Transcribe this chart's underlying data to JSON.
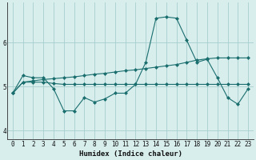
{
  "xlabel": "Humidex (Indice chaleur)",
  "background_color": "#d8eeed",
  "grid_color": "#a8cece",
  "line_color": "#1a6e6e",
  "xlim": [
    -0.5,
    23.5
  ],
  "ylim": [
    3.8,
    6.9
  ],
  "yticks": [
    4,
    5,
    6
  ],
  "xticks": [
    0,
    1,
    2,
    3,
    4,
    5,
    6,
    7,
    8,
    9,
    10,
    11,
    12,
    13,
    14,
    15,
    16,
    17,
    18,
    19,
    20,
    21,
    22,
    23
  ],
  "line1_x": [
    0,
    1,
    2,
    3,
    4,
    5,
    6,
    7,
    8,
    9,
    10,
    11,
    12,
    13,
    14,
    15,
    16,
    17,
    18,
    19,
    20,
    21,
    22,
    23
  ],
  "line1_y": [
    4.85,
    5.25,
    5.2,
    5.2,
    4.95,
    4.45,
    4.45,
    4.75,
    4.65,
    4.72,
    4.85,
    4.85,
    5.05,
    5.55,
    6.55,
    6.58,
    6.55,
    6.05,
    5.55,
    5.62,
    5.2,
    4.75,
    4.6,
    4.95
  ],
  "line2_x": [
    0,
    1,
    2,
    3,
    4,
    5,
    6,
    7,
    8,
    9,
    10,
    11,
    12,
    13,
    14,
    15,
    16,
    17,
    18,
    19,
    20,
    21,
    22,
    23
  ],
  "line2_y": [
    4.85,
    5.1,
    5.13,
    5.16,
    5.18,
    5.2,
    5.22,
    5.25,
    5.28,
    5.3,
    5.33,
    5.36,
    5.38,
    5.41,
    5.44,
    5.47,
    5.5,
    5.55,
    5.6,
    5.63,
    5.65,
    5.65,
    5.65,
    5.65
  ],
  "line3_x": [
    0,
    1,
    2,
    3,
    4,
    5,
    6,
    7,
    8,
    9,
    10,
    11,
    12,
    13,
    14,
    15,
    16,
    17,
    18,
    19,
    20,
    21,
    22,
    23
  ],
  "line3_y": [
    4.85,
    5.1,
    5.1,
    5.1,
    5.07,
    5.05,
    5.05,
    5.05,
    5.05,
    5.05,
    5.05,
    5.05,
    5.05,
    5.05,
    5.05,
    5.05,
    5.05,
    5.05,
    5.05,
    5.05,
    5.05,
    5.05,
    5.05,
    5.05
  ]
}
